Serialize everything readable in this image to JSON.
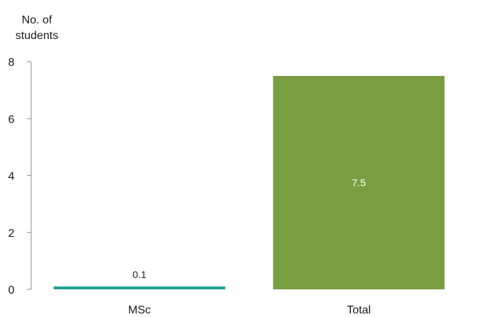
{
  "chart_data": {
    "type": "bar",
    "ylabel_lines": [
      "No. of",
      "students"
    ],
    "xlabel": "",
    "title": "",
    "categories": [
      "MSc",
      "Total"
    ],
    "values": [
      0.1,
      7.5
    ],
    "data_labels": [
      "0.1",
      "7.5"
    ],
    "colors": [
      "#1e9c96",
      "#7b9e43"
    ],
    "data_label_colors": [
      "#1a1a1a",
      "#ffffff"
    ],
    "ylim": [
      0,
      8
    ],
    "yticks": [
      0,
      2,
      4,
      6,
      8
    ],
    "grid": false,
    "legend": "none"
  }
}
